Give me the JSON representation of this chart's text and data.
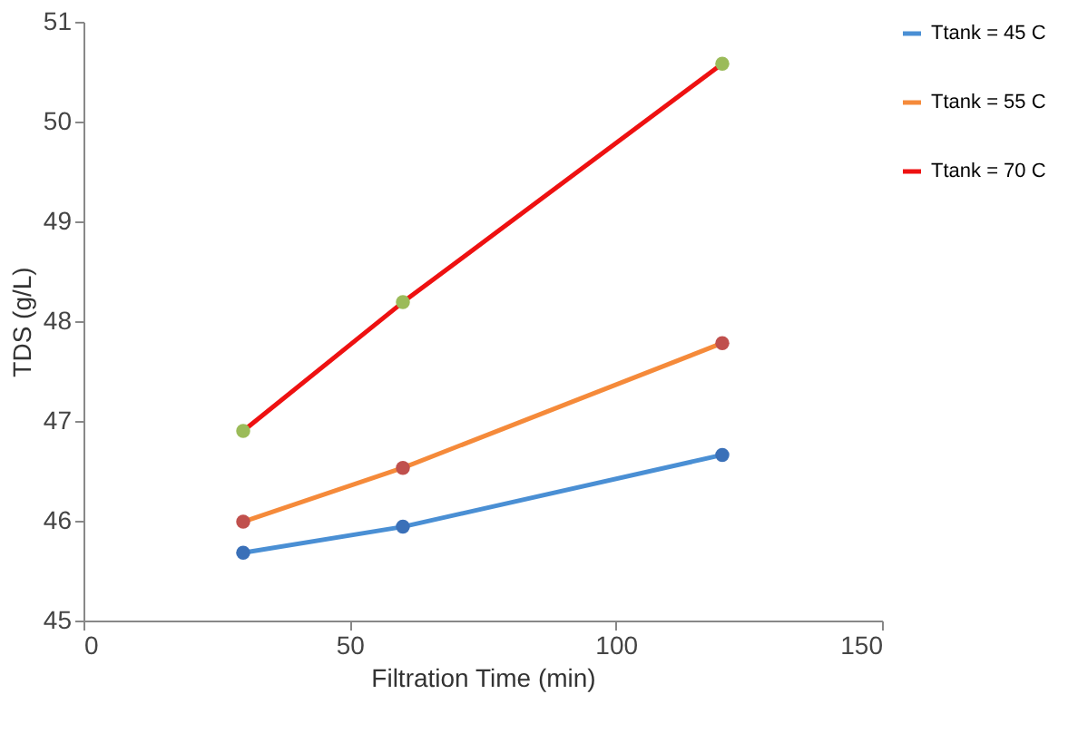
{
  "chart_data": {
    "type": "line",
    "xlabel": "Filtration Time (min)",
    "ylabel": "TDS (g/L)",
    "x": [
      30,
      60,
      120
    ],
    "series": [
      {
        "name": "Ttank = 45 C",
        "color": "#4a8fd4",
        "colors": [
          "#3a70b8",
          "#3a70b8",
          "#3a70b8"
        ],
        "values": [
          45.68,
          45.94,
          46.66
        ]
      },
      {
        "name": "Ttank = 55 C",
        "color": "#f58a3a",
        "colors": [
          "#c0504d",
          "#c0504d",
          "#c0504d"
        ],
        "values": [
          45.99,
          46.53,
          47.78
        ]
      },
      {
        "name": "Ttank = 70 C",
        "color": "#ee1111",
        "colors": [
          "#9bbb59",
          "#9bbb59",
          "#9bbb59"
        ],
        "values": [
          46.9,
          48.19,
          50.58
        ]
      }
    ],
    "xlim": [
      0,
      150
    ],
    "xticks": [
      0,
      50,
      100,
      150
    ],
    "ylim": [
      45,
      51
    ],
    "yticks": [
      45,
      46,
      47,
      48,
      49,
      50,
      51
    ],
    "grid": false,
    "legend": "right",
    "marker": "circle",
    "line_style": "solid"
  }
}
